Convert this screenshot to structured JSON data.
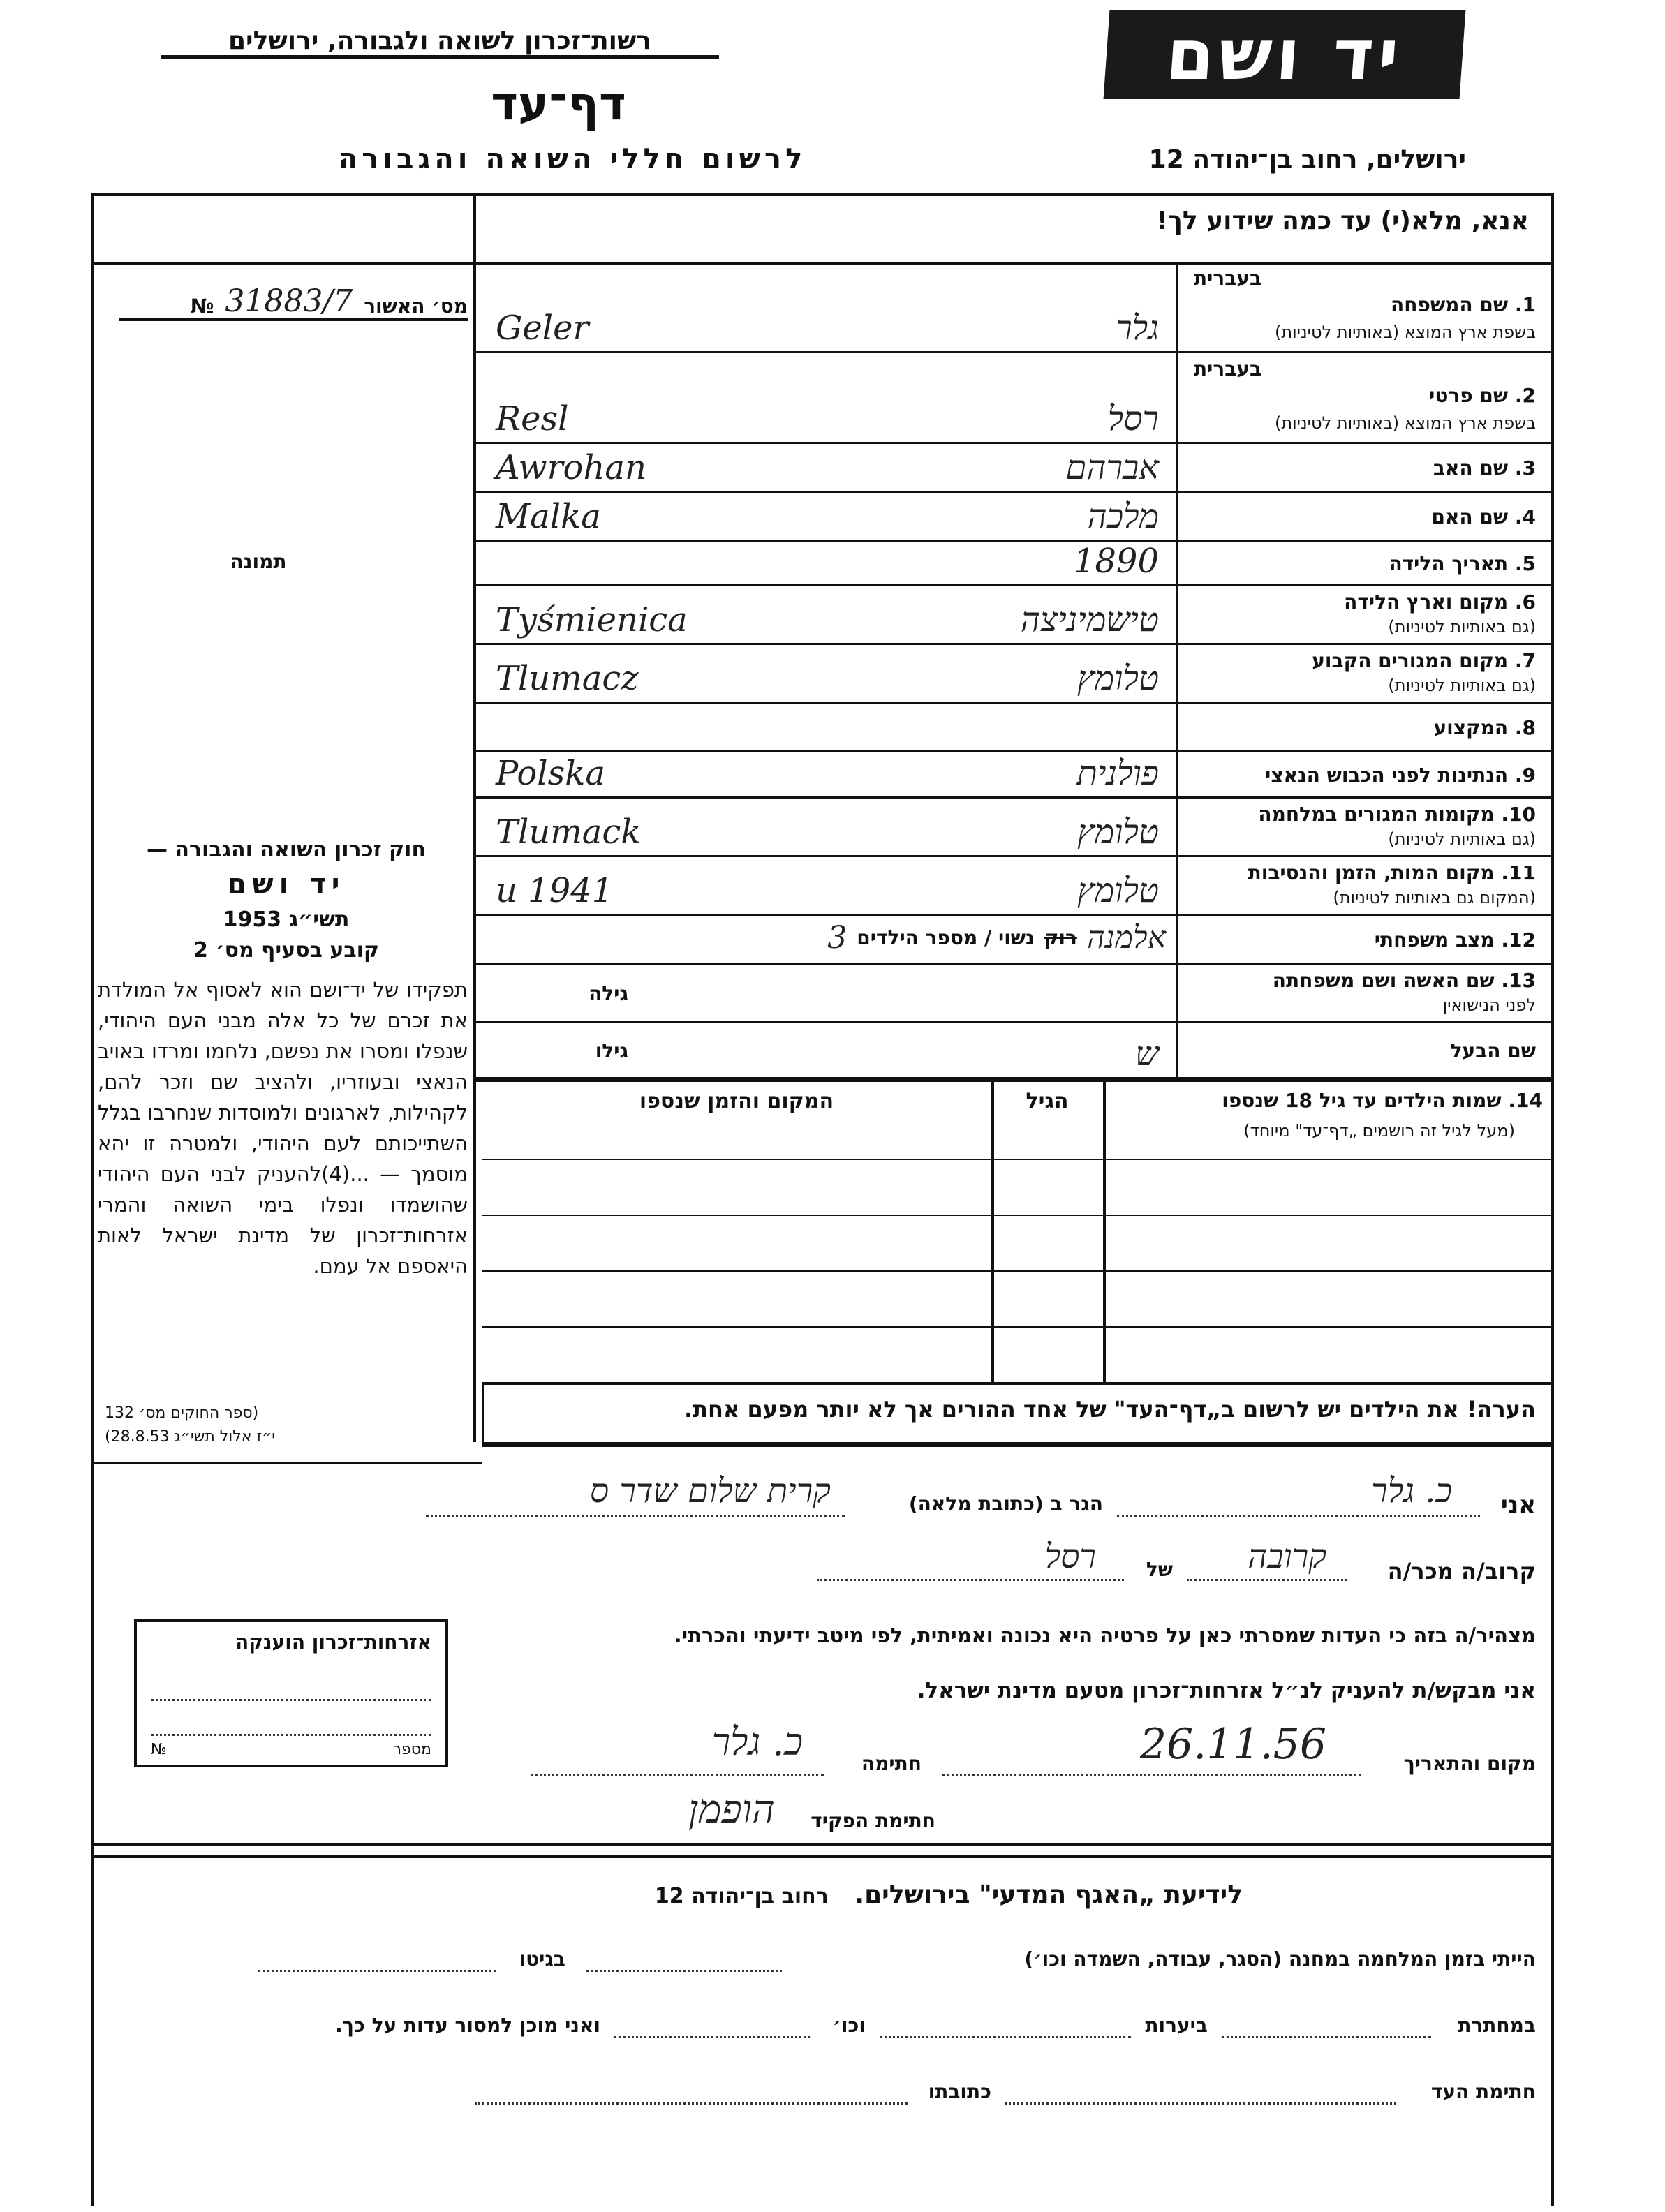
{
  "header": {
    "org": "רשות־זכרון לשואה ולגבורה, ירושלים",
    "title": "דף־עד",
    "subtitle": "לרשום חללי השואה והגבורה",
    "logo": "יד ושם",
    "address": "ירושלים, רחוב בן־יהודה 12"
  },
  "form": {
    "instruction": "אנא, מלא(י) עד כמה שידוע לך!",
    "hebrew_label": "בעברית",
    "fields": [
      {
        "num": "1.",
        "label": "שם המשפחה",
        "sub": "בשפת ארץ המוצא (באותיות לטיניות)",
        "hebrew": "גלר",
        "latin": "Geler"
      },
      {
        "num": "2.",
        "label": "שם פרטי",
        "sub": "בשפת ארץ המוצא (באותיות לטיניות)",
        "hebrew": "רסל",
        "latin": "Resl"
      },
      {
        "num": "3.",
        "label": "שם האב",
        "hebrew": "אברהם",
        "latin": "Awrohan"
      },
      {
        "num": "4.",
        "label": "שם האם",
        "hebrew": "מלכה",
        "latin": "Malka"
      },
      {
        "num": "5.",
        "label": "תאריך הלידה",
        "value": "1890"
      },
      {
        "num": "6.",
        "label": "מקום וארץ הלידה",
        "sub": "(גם באותיות לטיניות)",
        "hebrew": "טישמיניצה",
        "latin": "Tyśmienica"
      },
      {
        "num": "7.",
        "label": "מקום המגורים הקבוע",
        "sub": "(גם באותיות לטיניות)",
        "hebrew": "טלומץ",
        "latin": "Tlumacz"
      },
      {
        "num": "8.",
        "label": "המקצוע"
      },
      {
        "num": "9.",
        "label": "הנתינות לפני הכבוש הנאצי",
        "hebrew": "פולנית",
        "latin": "Polska"
      },
      {
        "num": "10.",
        "label": "מקומות המגורים במלחמה",
        "sub": "(גם באותיות לטיניות)",
        "hebrew": "טלומץ",
        "latin": "Tlumack"
      },
      {
        "num": "11.",
        "label": "מקום המות, הזמן והנסיבות",
        "sub": "(המקום גם באותיות לטיניות)",
        "hebrew": "טלומץ",
        "latin": "u 1941"
      },
      {
        "num": "12.",
        "label": "מצב משפחתי",
        "struck": "רוק",
        "hebrew": "אלמנה",
        "printed": "נשוי / מספר הילדים",
        "children": "3"
      },
      {
        "num": "13.",
        "label": "שם האשה ושם משפחתה",
        "sub": "לפני הנישואין",
        "extra": "גילה"
      },
      {
        "label": "שם הבעל",
        "extra": "גילו",
        "value": "ש"
      }
    ],
    "children": {
      "num": "14.",
      "label": "שמות הילדים עד גיל 18 שנספו",
      "sub": "(מעל לגיל זה רושמים „דף־עד\" מיוחד)",
      "col_age": "הגיל",
      "col_place": "המקום והזמן שנספו"
    },
    "note": "הערה!  את הילדים יש לרשום ב„דף־העד\" של אחד ההורים אך לא יותר מפעם אחת.",
    "declaration": {
      "ani": "אני",
      "declarant": "כ. גלר",
      "resides": "הגר ב (כתובת מלאה)",
      "address": "קרית שלום שדר ס",
      "relative_label": "קרוב/ה מכר/ה",
      "relation": "קרובה",
      "of": "של",
      "of_name": "רסל",
      "statement": "מצהיר/ה בזה כי העדות שמסרתי כאן על פרטיה היא נכונה ואמיתית, לפי מיטב ידיעתי והכרתי.",
      "request": "אני מבקש/ת להעניק לנ״ל אזרחות־זכרון מטעם מדינת ישראל.",
      "place_date_label": "מקום והתאריך",
      "date": "26.11.56",
      "signature_label": "חתימה",
      "signature": "כ. גלר",
      "clerk_label": "חתימת הפקיד",
      "clerk_signature": "הופמן"
    }
  },
  "sidebar": {
    "number_label": "מס׳ האשור",
    "number_sign": "№",
    "number": "31883/7",
    "photo": "תמונה",
    "law_title": "חוק זכרון השואה והגבורה —",
    "law_name": "יד ושם",
    "law_year": "תשי״ג 1953",
    "law_clause": "קובע בסעיף מס׳ 2",
    "law_text": "תפקידו של יד־ושם הוא לאסוף אל המולדת את זכרם של כל אלה מבני העם היהודי, שנפלו ומסרו את נפשם, נלחמו ומרדו באויב הנאצי ובעוזריו, ולהציב שם וזכר להם, לקהילות, לארגונים ולמוסדות שנחרבו בגלל השתייכותם לעם היהודי, ולמטרה זו יהא מוסמך — ...(4)להעניק לבני העם היהודי שהושמדו ונפלו בימי השואה והמרי אזרחות־זכרון של מדינת ישראל לאות היאספם אל עמם.",
    "law_ref1": "(ספר החוקים מס׳ 132",
    "law_ref2": "י״ז אלול תשי״ג 28.8.53)",
    "cert_title": "אזרחות־זכרון הוענקה",
    "cert_number": "מספר",
    "cert_sign": "№"
  },
  "footer": {
    "title": "לידיעת „האגף המדעי\" בירושלים.",
    "address": "רחוב בן־יהודה 12",
    "line1": "הייתי בזמן המלחמה במחנה (הסגר, עבודה, השמדה וכו׳)",
    "ghetto": "בגיטו",
    "hiding": "במחתרת",
    "forests": "ביערות",
    "etc": "וכו׳",
    "ready": "ואני מוכן למסור עדות על כך.",
    "witness_sig": "חתימת העד",
    "address_label": "כתובתו"
  }
}
